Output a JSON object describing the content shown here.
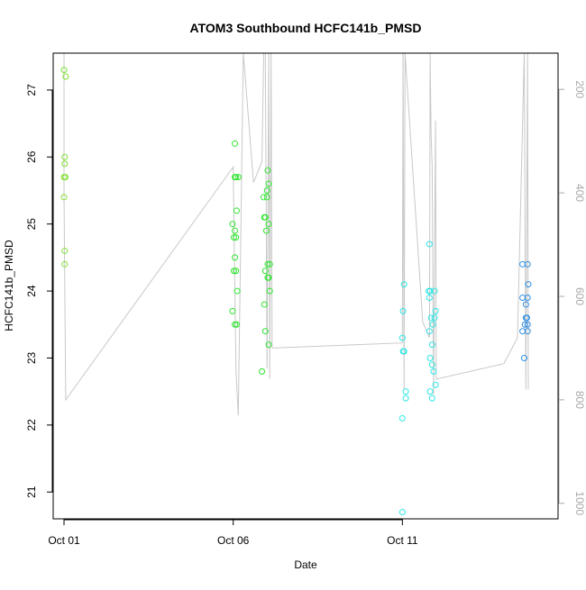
{
  "chart_data": {
    "type": "scatter",
    "title": "ATOM3 Southbound HCFC141b_PMSD",
    "xlabel": "Date",
    "ylabel": "HCFC141b_PMSD",
    "x_ticks": [
      {
        "value": 0,
        "label": "Oct 01"
      },
      {
        "value": 5,
        "label": "Oct 06"
      },
      {
        "value": 10,
        "label": "Oct 11"
      }
    ],
    "xlim": [
      -0.32,
      14.6
    ],
    "ylim": [
      20.6,
      27.55
    ],
    "y_ticks": [
      21,
      22,
      23,
      24,
      25,
      26,
      27
    ],
    "right_axis": {
      "ylim": [
        1030,
        130
      ],
      "ticks": [
        200,
        400,
        600,
        800,
        1000
      ],
      "color": "#a8a8a8"
    },
    "grid": false,
    "legend": "none",
    "series": [
      {
        "color": "#7fe12f",
        "points": [
          [
            0.0,
            27.3
          ],
          [
            0.05,
            27.2
          ],
          [
            0.02,
            26.0
          ],
          [
            0.02,
            25.9
          ],
          [
            0.0,
            25.7
          ],
          [
            0.04,
            25.7
          ],
          [
            0.0,
            25.4
          ],
          [
            0.02,
            24.6
          ],
          [
            0.02,
            24.4
          ]
        ]
      },
      {
        "color": "#2ee52e",
        "points": [
          [
            5.05,
            26.2
          ],
          [
            5.08,
            25.7
          ],
          [
            5.15,
            25.7
          ],
          [
            4.98,
            25.0
          ],
          [
            5.05,
            24.9
          ],
          [
            5.02,
            24.8
          ],
          [
            5.08,
            24.8
          ],
          [
            5.1,
            25.2
          ],
          [
            5.05,
            24.5
          ],
          [
            5.02,
            24.3
          ],
          [
            5.08,
            24.3
          ],
          [
            5.12,
            24.0
          ],
          [
            4.98,
            23.7
          ],
          [
            5.05,
            23.5
          ],
          [
            5.1,
            23.5
          ],
          [
            5.05,
            25.7
          ],
          [
            5.9,
            25.4
          ],
          [
            6.0,
            25.4
          ],
          [
            6.02,
            25.8
          ],
          [
            6.05,
            25.6
          ],
          [
            6.0,
            25.5
          ],
          [
            5.95,
            25.1
          ],
          [
            5.92,
            25.1
          ],
          [
            6.05,
            25.0
          ],
          [
            5.98,
            24.9
          ],
          [
            6.02,
            24.4
          ],
          [
            6.08,
            24.4
          ],
          [
            5.95,
            24.3
          ],
          [
            6.02,
            24.2
          ],
          [
            6.05,
            24.2
          ],
          [
            6.08,
            24.0
          ],
          [
            5.92,
            23.8
          ],
          [
            5.95,
            23.4
          ],
          [
            6.05,
            23.2
          ],
          [
            5.85,
            22.8
          ]
        ]
      },
      {
        "color": "#2ee5e5",
        "points": [
          [
            10.05,
            24.1
          ],
          [
            10.02,
            23.7
          ],
          [
            10.0,
            23.3
          ],
          [
            10.05,
            23.1
          ],
          [
            10.02,
            23.1
          ],
          [
            10.1,
            22.5
          ],
          [
            10.1,
            22.4
          ],
          [
            10.0,
            22.1
          ],
          [
            10.0,
            20.7
          ],
          [
            10.8,
            24.7
          ],
          [
            10.78,
            24.0
          ],
          [
            10.82,
            24.0
          ],
          [
            10.95,
            24.0
          ],
          [
            10.8,
            23.9
          ],
          [
            10.98,
            23.7
          ],
          [
            10.85,
            23.6
          ],
          [
            10.95,
            23.6
          ],
          [
            10.9,
            23.5
          ],
          [
            10.8,
            23.4
          ],
          [
            10.88,
            23.2
          ],
          [
            10.82,
            23.0
          ],
          [
            10.88,
            22.9
          ],
          [
            10.92,
            22.8
          ],
          [
            10.98,
            22.6
          ],
          [
            10.82,
            22.5
          ],
          [
            10.88,
            22.4
          ]
        ]
      },
      {
        "color": "#2e8fe5",
        "points": [
          [
            13.55,
            24.4
          ],
          [
            13.7,
            24.4
          ],
          [
            13.72,
            24.1
          ],
          [
            13.55,
            23.9
          ],
          [
            13.7,
            23.9
          ],
          [
            13.65,
            23.8
          ],
          [
            13.68,
            23.6
          ],
          [
            13.65,
            23.6
          ],
          [
            13.62,
            23.5
          ],
          [
            13.7,
            23.5
          ],
          [
            13.55,
            23.4
          ],
          [
            13.7,
            23.4
          ],
          [
            13.6,
            23.0
          ]
        ]
      }
    ],
    "track_line": {
      "color": "#c8c8c8",
      "axis": "right",
      "points": [
        [
          0.0,
          90
        ],
        [
          0.0,
          400
        ],
        [
          0.05,
          800
        ],
        [
          5.0,
          350
        ],
        [
          5.08,
          740
        ],
        [
          5.15,
          830
        ],
        [
          5.3,
          90
        ],
        [
          5.6,
          380
        ],
        [
          5.85,
          340
        ],
        [
          5.9,
          100
        ],
        [
          5.95,
          90
        ],
        [
          6.0,
          740
        ],
        [
          6.05,
          90
        ],
        [
          6.08,
          760
        ],
        [
          6.12,
          90
        ],
        [
          6.15,
          700
        ],
        [
          10.0,
          690
        ],
        [
          10.02,
          90
        ],
        [
          10.05,
          780
        ],
        [
          10.08,
          90
        ],
        [
          10.6,
          650
        ],
        [
          10.8,
          680
        ],
        [
          10.82,
          90
        ],
        [
          10.85,
          290
        ],
        [
          10.88,
          350
        ],
        [
          10.92,
          790
        ],
        [
          10.98,
          260
        ],
        [
          11.0,
          760
        ],
        [
          13.0,
          730
        ],
        [
          13.4,
          680
        ],
        [
          13.6,
          90
        ],
        [
          13.65,
          780
        ],
        [
          13.7,
          90
        ],
        [
          13.72,
          780
        ]
      ]
    }
  }
}
